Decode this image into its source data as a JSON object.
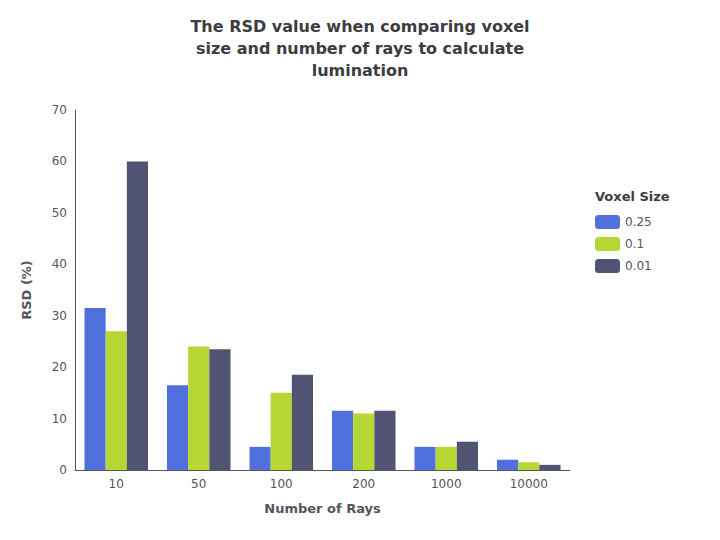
{
  "chart_data": {
    "type": "bar",
    "title": "The RSD value when comparing voxel\nsize and number of rays to calculate\nlumination",
    "xlabel": "Number of Rays",
    "ylabel": "RSD (%)",
    "categories": [
      "10",
      "50",
      "100",
      "200",
      "1000",
      "10000"
    ],
    "series": [
      {
        "name": "0.25",
        "values": [
          31.5,
          16.5,
          4.5,
          11.5,
          4.5,
          2.0
        ]
      },
      {
        "name": "0.1",
        "values": [
          27.0,
          24.0,
          15.0,
          11.0,
          4.5,
          1.5
        ]
      },
      {
        "name": "0.01",
        "values": [
          60.0,
          23.5,
          18.5,
          11.5,
          5.5,
          1.0
        ]
      }
    ],
    "legend_title": "Voxel Size",
    "legend": "right",
    "ylim": [
      0,
      70
    ],
    "yticks": [
      0,
      10,
      20,
      30,
      40,
      50,
      60,
      70
    ],
    "grid": false
  }
}
